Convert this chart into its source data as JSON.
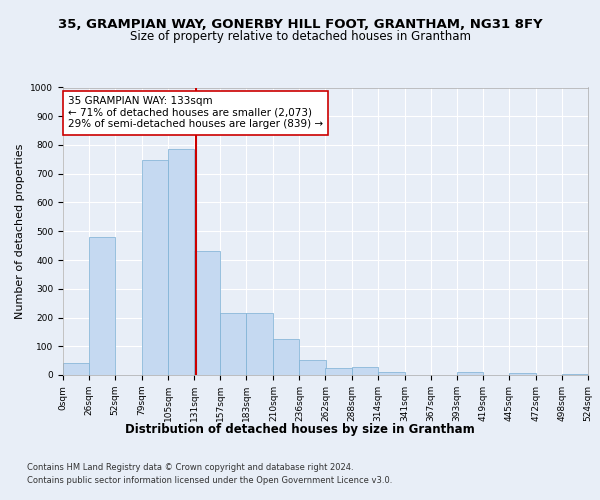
{
  "title_line1": "35, GRAMPIAN WAY, GONERBY HILL FOOT, GRANTHAM, NG31 8FY",
  "title_line2": "Size of property relative to detached houses in Grantham",
  "xlabel": "Distribution of detached houses by size in Grantham",
  "ylabel": "Number of detached properties",
  "bar_left_edges": [
    0,
    26,
    52,
    79,
    105,
    131,
    157,
    183,
    210,
    236,
    262,
    288,
    314,
    341,
    367,
    393,
    419,
    445,
    472,
    498
  ],
  "bar_widths": [
    26,
    26,
    27,
    26,
    26,
    26,
    26,
    27,
    26,
    26,
    26,
    26,
    27,
    26,
    26,
    26,
    26,
    27,
    26,
    26
  ],
  "bar_heights": [
    42,
    480,
    0,
    748,
    785,
    430,
    215,
    215,
    125,
    52,
    25,
    28,
    12,
    0,
    0,
    10,
    0,
    7,
    0,
    5
  ],
  "bar_color": "#c5d9f1",
  "bar_edge_color": "#7bafd4",
  "property_line_x": 133,
  "property_line_color": "#cc0000",
  "annotation_text": "35 GRAMPIAN WAY: 133sqm\n← 71% of detached houses are smaller (2,073)\n29% of semi-detached houses are larger (839) →",
  "annotation_box_color": "#ffffff",
  "annotation_box_edge_color": "#cc0000",
  "ylim": [
    0,
    1000
  ],
  "yticks": [
    0,
    100,
    200,
    300,
    400,
    500,
    600,
    700,
    800,
    900,
    1000
  ],
  "tick_labels": [
    "0sqm",
    "26sqm",
    "52sqm",
    "79sqm",
    "105sqm",
    "131sqm",
    "157sqm",
    "183sqm",
    "210sqm",
    "236sqm",
    "262sqm",
    "288sqm",
    "314sqm",
    "341sqm",
    "367sqm",
    "393sqm",
    "419sqm",
    "445sqm",
    "472sqm",
    "498sqm",
    "524sqm"
  ],
  "tick_positions": [
    0,
    26,
    52,
    79,
    105,
    131,
    157,
    183,
    210,
    236,
    262,
    288,
    314,
    341,
    367,
    393,
    419,
    445,
    472,
    498,
    524
  ],
  "footer_line1": "Contains HM Land Registry data © Crown copyright and database right 2024.",
  "footer_line2": "Contains public sector information licensed under the Open Government Licence v3.0.",
  "bg_color": "#e8eef7",
  "plot_bg_color": "#e8eef7",
  "grid_color": "#ffffff",
  "title_fontsize": 9.5,
  "subtitle_fontsize": 8.5,
  "ylabel_fontsize": 8,
  "xlabel_fontsize": 8.5,
  "tick_fontsize": 6.5,
  "footer_fontsize": 6,
  "annot_fontsize": 7.5
}
